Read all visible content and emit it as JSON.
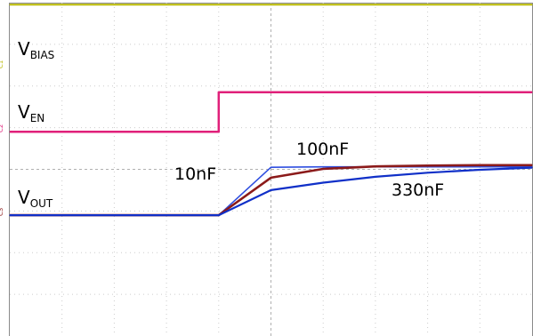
{
  "chart_data": {
    "type": "line",
    "title": "",
    "xlabel": "",
    "ylabel": "",
    "grid": true,
    "grid_divisions": {
      "x": 10,
      "y": 8
    },
    "x": [
      0,
      1,
      2,
      3,
      4,
      5,
      6,
      7,
      8,
      9,
      10
    ],
    "xlim": [
      0,
      10
    ],
    "ylim": [
      0,
      8
    ],
    "step_time_div": 4,
    "signal_labels": [
      {
        "main": "V",
        "sub": "BIAS"
      },
      {
        "main": "V",
        "sub": "EN"
      },
      {
        "main": "V",
        "sub": "OUT"
      }
    ],
    "channel_markers": [
      "C1",
      "C2",
      "C3"
    ],
    "series": [
      {
        "name": "",
        "color": "#b8b800",
        "values": [
          7.95,
          7.95,
          7.95,
          7.95,
          7.95,
          7.95,
          7.95,
          7.95,
          7.95,
          7.95,
          7.95
        ]
      },
      {
        "name": "",
        "color": "#e0207a",
        "values": [
          4.9,
          4.9,
          4.9,
          4.9,
          4.9,
          5.85,
          5.85,
          5.85,
          5.85,
          5.85,
          5.85
        ]
      },
      {
        "name": "10nF",
        "color": "#2f4fe0",
        "values": [
          2.9,
          2.9,
          2.9,
          2.9,
          2.9,
          4.05,
          4.06,
          4.06,
          4.06,
          4.06,
          4.06
        ]
      },
      {
        "name": "100nF",
        "color": "#8b1a1a",
        "values": [
          2.9,
          2.9,
          2.9,
          2.9,
          2.9,
          3.8,
          4.01,
          4.07,
          4.09,
          4.1,
          4.1
        ]
      },
      {
        "name": "330nF",
        "color": "#1030c8",
        "values": [
          2.9,
          2.9,
          2.9,
          2.9,
          2.9,
          3.5,
          3.68,
          3.82,
          3.92,
          3.99,
          4.04
        ]
      }
    ]
  }
}
